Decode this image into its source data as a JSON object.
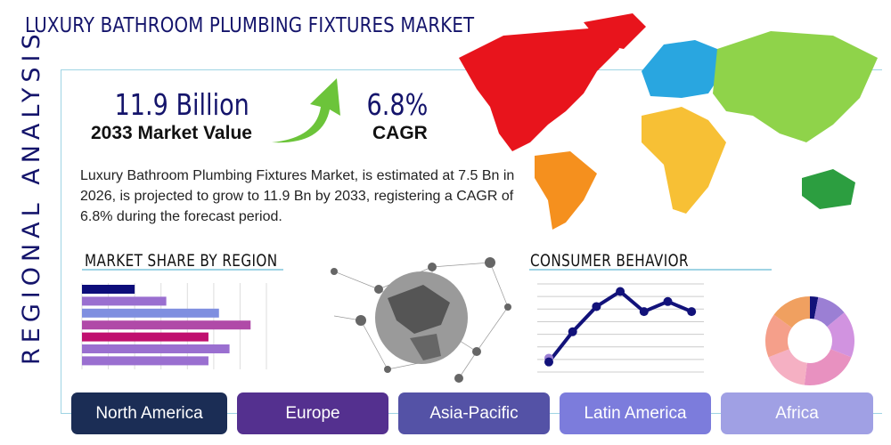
{
  "title": "LUXURY BATHROOM PLUMBING FIXTURES MARKET",
  "side_label": "REGIONAL ANALYSIS",
  "stats": {
    "market_value": "11.9 Billion",
    "market_value_label": "2033 Market Value",
    "cagr": "6.8%",
    "cagr_label": "CAGR"
  },
  "description": "Luxury Bathroom Plumbing Fixtures Market, is estimated at 7.5 Bn in 2026, is projected to grow to 11.9 Bn by 2033, registering a CAGR of 6.8% during the forecast period.",
  "sections": {
    "market_share": "MARKET SHARE BY REGION",
    "consumer": "CONSUMER BEHAVIOR"
  },
  "regions": [
    "North America",
    "Europe",
    "Asia-Pacific",
    "Latin America",
    "Africa"
  ],
  "region_colors": [
    "#1b2d55",
    "#54308f",
    "#5452a6",
    "#7c7cdc",
    "#a0a0e4"
  ],
  "chart_data": [
    {
      "type": "bar",
      "orientation": "horizontal",
      "title": "MARKET SHARE BY REGION",
      "values": [
        20,
        32,
        52,
        64,
        48,
        56,
        48
      ],
      "colors": [
        "#0d0d7a",
        "#9a6fd0",
        "#7f8fe0",
        "#b04aa8",
        "#c0106f",
        "#9a6fd0",
        "#9a6fd0"
      ],
      "xlim": [
        0,
        70
      ],
      "grid": true
    },
    {
      "type": "line",
      "title": "CONSUMER BEHAVIOR",
      "values": [
        8,
        32,
        52,
        64,
        48,
        56,
        48
      ],
      "extra_point": 11,
      "ylim": [
        0,
        70
      ],
      "grid": true,
      "color": "#12127a"
    },
    {
      "type": "pie",
      "donut": true,
      "values": [
        3,
        11,
        17,
        21,
        17,
        16,
        15
      ],
      "colors": [
        "#12127a",
        "#9b7fd4",
        "#d193e0",
        "#e891c0",
        "#f5b0c3",
        "#f59f8a",
        "#f0a060"
      ]
    }
  ]
}
